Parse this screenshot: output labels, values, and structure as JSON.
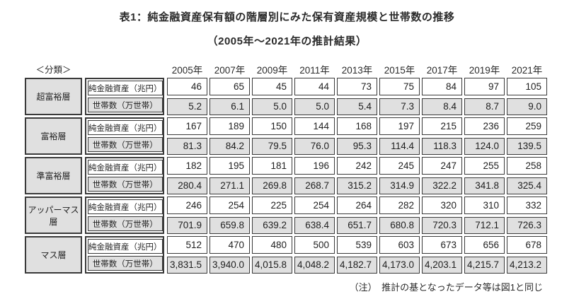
{
  "title": "表1：純金融資産保有額の階層別にみた保有資産規模と世帯数の推移",
  "subtitle": "（2005年～2021年の推計結果）",
  "classification_label": "＜分類＞",
  "footnote": "（注）　推計の基となったデータ等は図1と同じ",
  "colors": {
    "cell_gray": "#e0e0e0",
    "border_dark": "#3a3a3a",
    "text": "#1f1f1f",
    "background": "#ffffff"
  },
  "chart_data": {
    "type": "table",
    "title": "表1：純金融資産保有額の階層別にみた保有資産規模と世帯数の推移（2005年～2021年の推計結果）",
    "years": [
      "2005年",
      "2007年",
      "2009年",
      "2011年",
      "2013年",
      "2015年",
      "2017年",
      "2019年",
      "2021年"
    ],
    "row_labels": {
      "assets": "純金融資産（兆円）",
      "households": "世帯数（万世帯）"
    },
    "tiers": [
      {
        "name": "超富裕層",
        "assets": [
          "46",
          "65",
          "45",
          "44",
          "73",
          "75",
          "84",
          "97",
          "105"
        ],
        "households": [
          "5.2",
          "6.1",
          "5.0",
          "5.0",
          "5.4",
          "7.3",
          "8.4",
          "8.7",
          "9.0"
        ]
      },
      {
        "name": "富裕層",
        "assets": [
          "167",
          "189",
          "150",
          "144",
          "168",
          "197",
          "215",
          "236",
          "259"
        ],
        "households": [
          "81.3",
          "84.2",
          "79.5",
          "76.0",
          "95.3",
          "114.4",
          "118.3",
          "124.0",
          "139.5"
        ]
      },
      {
        "name": "準富裕層",
        "assets": [
          "182",
          "195",
          "181",
          "196",
          "242",
          "245",
          "247",
          "255",
          "258"
        ],
        "households": [
          "280.4",
          "271.1",
          "269.8",
          "268.7",
          "315.2",
          "314.9",
          "322.2",
          "341.8",
          "325.4"
        ]
      },
      {
        "name": "アッパーマス層",
        "assets": [
          "246",
          "254",
          "225",
          "254",
          "264",
          "282",
          "320",
          "310",
          "332"
        ],
        "households": [
          "701.9",
          "659.8",
          "639.2",
          "638.4",
          "651.7",
          "680.8",
          "720.3",
          "712.1",
          "726.3"
        ]
      },
      {
        "name": "マス層",
        "assets": [
          "512",
          "470",
          "480",
          "500",
          "539",
          "603",
          "673",
          "656",
          "678"
        ],
        "households": [
          "3,831.5",
          "3,940.0",
          "4,015.8",
          "4,048.2",
          "4,182.7",
          "4,173.0",
          "4,203.1",
          "4,215.7",
          "4,213.2"
        ]
      }
    ]
  }
}
